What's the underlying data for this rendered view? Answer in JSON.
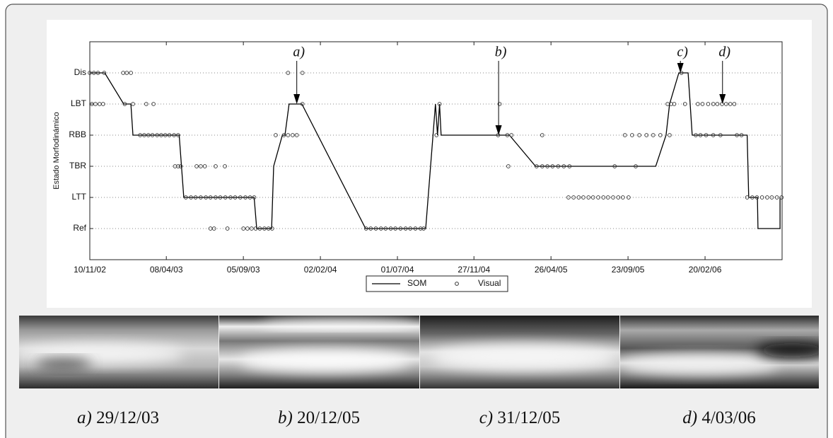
{
  "chart_data": {
    "type": "line",
    "ylabel": "Estado Morfodinámico",
    "xlim": [
      "10/11/02",
      "20/07/06"
    ],
    "xticks": [
      "10/11/02",
      "08/04/03",
      "05/09/03",
      "02/02/04",
      "01/07/04",
      "27/11/04",
      "26/04/05",
      "23/09/05",
      "20/02/06"
    ],
    "ylim": [
      -1,
      6
    ],
    "yticks": [
      {
        "value": 0,
        "label": "Ref"
      },
      {
        "value": 1,
        "label": "LTT"
      },
      {
        "value": 2,
        "label": "TBR"
      },
      {
        "value": 3,
        "label": "RBB"
      },
      {
        "value": 4,
        "label": "LBT"
      },
      {
        "value": 5,
        "label": "Dis"
      }
    ],
    "grid": true,
    "legend": "bottom",
    "series": [
      {
        "name": "SOM",
        "type": "line",
        "color": "#000000",
        "x": [
          "10/11/02",
          "09/12/02",
          "15/01/03",
          "29/01/03",
          "02/02/03",
          "03/05/03",
          "12/05/03",
          "26/09/03",
          "01/10/03",
          "30/10/03",
          "03/11/03",
          "20/11/03",
          "25/11/03",
          "03/12/03",
          "28/12/03",
          "30/04/04",
          "25/08/04",
          "13/09/04",
          "17/09/04",
          "21/09/04",
          "24/09/04",
          "04/02/05",
          "27/03/05",
          "16/11/05",
          "06/12/05",
          "13/12/05",
          "31/12/05",
          "18/01/06",
          "26/01/06",
          "13/05/06",
          "16/05/06",
          "02/06/06",
          "03/06/06",
          "16/07/06",
          "16/07/06"
        ],
        "values": [
          5,
          5,
          4,
          4,
          3,
          3,
          1,
          1,
          0,
          0,
          2,
          3,
          3,
          4,
          4,
          0,
          0,
          4,
          3,
          4,
          3,
          3,
          2,
          2,
          3,
          4,
          5,
          5,
          3,
          3,
          1,
          1,
          0,
          0,
          1
        ]
      },
      {
        "name": "Visual",
        "type": "scatter",
        "color": "#333333",
        "x": [
          "10/11/02",
          "18/11/02",
          "26/11/02",
          "08/12/02",
          "14/01/03",
          "21/01/03",
          "29/01/03",
          "01/12/03",
          "29/12/03",
          "05/01/06",
          "14/11/02",
          "21/11/02",
          "29/11/02",
          "06/12/02",
          "17/01/03",
          "02/02/03",
          "28/02/03",
          "14/03/03",
          "29/12/03",
          "21/09/04",
          "16/01/05",
          "09/12/05",
          "16/12/05",
          "22/12/05",
          "12/01/06",
          "06/02/06",
          "15/02/06",
          "26/02/06",
          "08/03/06",
          "16/03/06",
          "25/03/06",
          "02/04/06",
          "10/04/06",
          "18/04/06",
          "16/02/03",
          "24/02/03",
          "04/03/03",
          "12/03/03",
          "21/03/03",
          "29/03/03",
          "06/04/03",
          "14/04/03",
          "23/04/03",
          "01/05/03",
          "07/11/03",
          "23/11/03",
          "01/12/03",
          "10/12/03",
          "18/12/03",
          "15/09/04",
          "13/01/05",
          "31/01/05",
          "08/02/05",
          "09/04/05",
          "17/09/05",
          "01/10/05",
          "15/10/05",
          "29/10/05",
          "11/11/05",
          "25/11/05",
          "13/12/05",
          "02/02/06",
          "11/02/06",
          "22/02/06",
          "08/03/06",
          "22/03/06",
          "23/04/06",
          "02/05/06",
          "25/04/03",
          "01/05/03",
          "06/05/03",
          "06/06/03",
          "14/06/03",
          "22/06/03",
          "13/07/03",
          "31/07/03",
          "02/02/05",
          "29/03/05",
          "09/04/05",
          "19/04/05",
          "29/04/05",
          "10/05/05",
          "21/05/05",
          "01/06/05",
          "28/08/05",
          "08/10/05",
          "16/05/03",
          "26/05/03",
          "04/06/03",
          "14/06/03",
          "24/06/03",
          "03/07/03",
          "13/07/03",
          "22/07/03",
          "01/08/03",
          "11/08/03",
          "20/08/03",
          "30/08/03",
          "09/09/03",
          "18/09/03",
          "26/09/03",
          "30/05/05",
          "09/06/05",
          "19/06/05",
          "28/06/05",
          "08/07/05",
          "17/07/05",
          "27/07/05",
          "06/08/05",
          "15/08/05",
          "25/08/05",
          "04/09/05",
          "13/09/05",
          "24/09/05",
          "13/05/06",
          "23/05/06",
          "01/06/06",
          "11/06/06",
          "21/06/06",
          "30/06/06",
          "10/07/06",
          "19/07/06",
          "03/07/03",
          "10/07/03",
          "05/08/03",
          "05/09/03",
          "13/09/03",
          "21/09/03",
          "29/09/03",
          "07/10/03",
          "16/10/03",
          "24/10/03",
          "31/10/03",
          "01/05/04",
          "10/05/04",
          "20/05/04",
          "30/05/04",
          "08/06/04",
          "18/06/04",
          "27/06/04",
          "07/07/04",
          "17/07/04",
          "26/07/04",
          "05/08/04",
          "15/08/04",
          "21/08/04"
        ],
        "values": [
          5,
          5,
          5,
          5,
          5,
          5,
          5,
          5,
          5,
          5,
          4,
          4,
          4,
          4,
          4,
          4,
          4,
          4,
          4,
          4,
          4,
          4,
          4,
          4,
          4,
          4,
          4,
          4,
          4,
          4,
          4,
          4,
          4,
          4,
          3,
          3,
          3,
          3,
          3,
          3,
          3,
          3,
          3,
          3,
          3,
          3,
          3,
          3,
          3,
          3,
          3,
          3,
          3,
          3,
          3,
          3,
          3,
          3,
          3,
          3,
          3,
          3,
          3,
          3,
          3,
          3,
          3,
          3,
          2,
          2,
          2,
          2,
          2,
          2,
          2,
          2,
          2,
          2,
          2,
          2,
          2,
          2,
          2,
          2,
          2,
          2,
          1,
          1,
          1,
          1,
          1,
          1,
          1,
          1,
          1,
          1,
          1,
          1,
          1,
          1,
          1,
          1,
          1,
          1,
          1,
          1,
          1,
          1,
          1,
          1,
          1,
          1,
          1,
          1,
          1,
          1,
          1,
          1,
          1,
          1,
          1,
          1,
          0,
          0,
          0,
          0,
          0,
          0,
          0,
          0,
          0,
          0,
          0,
          0,
          0,
          0,
          0,
          0,
          0,
          0,
          0,
          0,
          0,
          0,
          0,
          0
        ]
      }
    ],
    "annotations": [
      {
        "text": "a)",
        "x": "18/12/03",
        "y": 4
      },
      {
        "text": "b)",
        "x": "14/01/05",
        "y": 3
      },
      {
        "text": "c)",
        "x": "03/01/06",
        "y": 5
      },
      {
        "text": "d)",
        "x": "26/03/06",
        "y": 4
      }
    ]
  },
  "panels": [
    {
      "label": "a)",
      "date": "29/12/03"
    },
    {
      "label": "b)",
      "date": "20/12/05"
    },
    {
      "label": "c)",
      "date": "31/12/05"
    },
    {
      "label": "d)",
      "date": "4/03/06"
    }
  ]
}
